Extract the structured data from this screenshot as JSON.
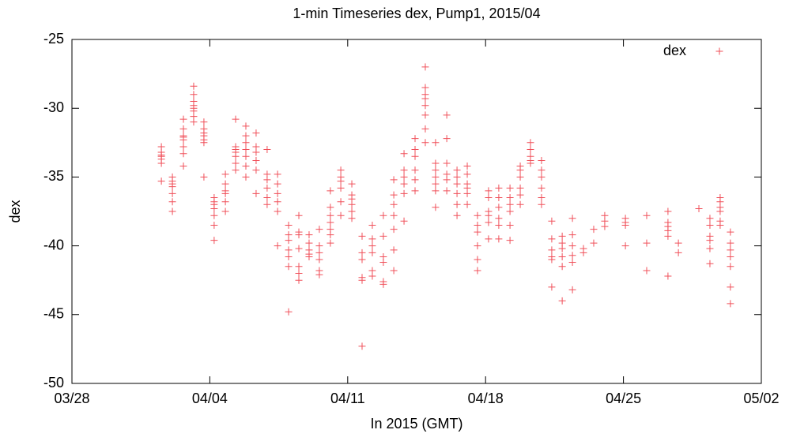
{
  "chart_data": {
    "type": "scatter",
    "title": "1-min Timeseries dex, Pump1, 2015/04",
    "x_label": "In 2015 (GMT)",
    "y_label": "dex",
    "legend_position": "top-right",
    "xlim": [
      0,
      35
    ],
    "ylim": [
      -50,
      -25
    ],
    "xticks": [
      {
        "value": 0,
        "label": "03/28"
      },
      {
        "value": 7,
        "label": "04/04"
      },
      {
        "value": 14,
        "label": "04/11"
      },
      {
        "value": 21,
        "label": "04/18"
      },
      {
        "value": 28,
        "label": "04/25"
      },
      {
        "value": 35,
        "label": "05/02"
      }
    ],
    "yticks": [
      -50,
      -45,
      -40,
      -35,
      -30,
      -25
    ],
    "series": [
      {
        "name": "dex",
        "color": "#f0505a",
        "x": [
          4.54,
          4.54,
          4.54,
          4.54,
          4.54,
          4.54,
          4.54,
          5.1,
          5.1,
          5.1,
          5.1,
          5.1,
          5.1,
          5.1,
          5.66,
          5.66,
          5.66,
          5.66,
          5.66,
          5.66,
          5.66,
          5.66,
          6.18,
          6.18,
          6.18,
          6.18,
          6.18,
          6.18,
          6.18,
          6.18,
          6.7,
          6.7,
          6.7,
          6.7,
          6.7,
          6.7,
          6.7,
          7.22,
          7.22,
          7.22,
          7.22,
          7.22,
          7.22,
          7.22,
          7.79,
          7.79,
          7.79,
          7.79,
          7.79,
          7.79,
          8.31,
          8.31,
          8.31,
          8.31,
          8.31,
          8.31,
          8.31,
          8.83,
          8.83,
          8.83,
          8.83,
          8.83,
          8.83,
          8.83,
          9.35,
          9.35,
          9.35,
          9.35,
          9.35,
          9.35,
          9.91,
          9.91,
          9.91,
          9.91,
          9.91,
          9.91,
          10.44,
          10.44,
          10.44,
          10.44,
          10.44,
          10.44,
          11.0,
          11.0,
          11.0,
          11.0,
          11.0,
          11.0,
          11.0,
          11.52,
          11.52,
          11.52,
          11.52,
          11.52,
          11.52,
          11.52,
          12.04,
          12.04,
          12.04,
          12.04,
          12.04,
          12.56,
          12.56,
          12.56,
          12.56,
          12.56,
          12.56,
          13.12,
          13.12,
          13.12,
          13.12,
          13.12,
          13.12,
          13.12,
          13.65,
          13.65,
          13.65,
          13.65,
          13.65,
          13.65,
          14.21,
          14.21,
          14.21,
          14.21,
          14.21,
          14.21,
          14.73,
          14.73,
          14.73,
          14.73,
          14.73,
          14.73,
          15.25,
          15.25,
          15.25,
          15.25,
          15.25,
          15.25,
          15.81,
          15.81,
          15.81,
          15.81,
          15.81,
          15.81,
          16.34,
          16.34,
          16.34,
          16.34,
          16.34,
          16.34,
          16.34,
          16.86,
          16.86,
          16.86,
          16.86,
          16.86,
          16.86,
          17.42,
          17.42,
          17.42,
          17.42,
          17.42,
          17.42,
          17.94,
          17.94,
          17.94,
          17.94,
          17.94,
          17.94,
          17.94,
          17.94,
          18.46,
          18.46,
          18.46,
          18.46,
          18.46,
          18.46,
          18.46,
          19.03,
          19.03,
          19.03,
          19.03,
          19.03,
          19.03,
          19.55,
          19.55,
          19.55,
          19.55,
          19.55,
          19.55,
          20.07,
          20.07,
          20.07,
          20.07,
          20.07,
          20.07,
          20.59,
          20.59,
          20.59,
          20.59,
          20.59,
          20.59,
          21.15,
          21.15,
          21.15,
          21.15,
          21.15,
          21.15,
          21.67,
          21.67,
          21.67,
          21.67,
          21.67,
          21.67,
          22.24,
          22.24,
          22.24,
          22.24,
          22.24,
          22.24,
          22.76,
          22.76,
          22.76,
          22.76,
          22.76,
          22.76,
          23.28,
          23.28,
          23.28,
          23.28,
          23.28,
          23.84,
          23.84,
          23.84,
          23.84,
          23.84,
          23.84,
          24.36,
          24.36,
          24.36,
          24.36,
          24.36,
          24.36,
          24.89,
          24.89,
          24.89,
          24.89,
          24.89,
          24.89,
          25.41,
          25.41,
          25.41,
          25.41,
          25.41,
          25.41,
          25.97,
          25.97,
          26.49,
          26.49,
          27.05,
          27.05,
          27.05,
          28.1,
          28.1,
          28.1,
          28.1,
          29.18,
          29.18,
          29.18,
          30.26,
          30.26,
          30.26,
          30.26,
          30.26,
          30.26,
          30.79,
          30.79,
          31.83,
          32.39,
          32.39,
          32.39,
          32.39,
          32.39,
          32.39,
          32.91,
          32.91,
          32.91,
          32.91,
          32.91,
          32.91,
          33.43,
          33.43,
          33.43,
          33.43,
          33.43,
          33.43,
          33.43
        ],
        "values": [
          -32.8,
          -33.2,
          -33.5,
          -33.7,
          -34.0,
          -33.4,
          -35.3,
          -35.3,
          -35.5,
          -35.7,
          -36.2,
          -36.8,
          -37.5,
          -35.0,
          -30.8,
          -31.5,
          -32.0,
          -32.3,
          -32.8,
          -33.3,
          -34.2,
          -32.1,
          -28.4,
          -29.0,
          -29.5,
          -30.0,
          -30.2,
          -30.6,
          -31.0,
          -29.8,
          -31.0,
          -31.5,
          -32.0,
          -32.3,
          -32.5,
          -31.8,
          -35.0,
          -36.5,
          -37.0,
          -37.3,
          -37.8,
          -38.5,
          -39.6,
          -36.8,
          -34.8,
          -35.5,
          -36.2,
          -36.8,
          -37.5,
          -36.0,
          -30.8,
          -32.8,
          -33.2,
          -33.5,
          -34.0,
          -34.5,
          -33.0,
          -31.3,
          -32.0,
          -32.5,
          -33.0,
          -33.5,
          -34.2,
          -35.0,
          -31.8,
          -32.8,
          -33.2,
          -33.8,
          -34.5,
          -36.2,
          -33.0,
          -34.8,
          -35.2,
          -35.8,
          -36.5,
          -37.0,
          -34.8,
          -35.5,
          -36.2,
          -36.8,
          -37.5,
          -40.0,
          -38.5,
          -39.2,
          -39.6,
          -40.3,
          -40.8,
          -41.5,
          -44.8,
          -37.8,
          -39.0,
          -39.2,
          -40.2,
          -41.5,
          -42.0,
          -42.5,
          -39.2,
          -39.8,
          -40.3,
          -40.6,
          -40.8,
          -38.8,
          -40.0,
          -40.5,
          -41.0,
          -41.8,
          -42.1,
          -36.0,
          -37.2,
          -37.8,
          -38.3,
          -38.8,
          -39.2,
          -39.8,
          -34.5,
          -35.0,
          -35.3,
          -35.8,
          -36.8,
          -37.8,
          -35.5,
          -36.3,
          -36.6,
          -37.0,
          -37.5,
          -38.0,
          -39.3,
          -40.5,
          -41.0,
          -42.3,
          -42.5,
          -47.3,
          -38.5,
          -39.5,
          -40.0,
          -40.5,
          -41.8,
          -42.2,
          -37.8,
          -39.3,
          -40.8,
          -41.2,
          -42.8,
          -42.6,
          -35.2,
          -36.3,
          -37.0,
          -37.8,
          -38.8,
          -40.3,
          -41.8,
          -33.3,
          -34.5,
          -35.0,
          -35.5,
          -36.2,
          -38.2,
          -32.2,
          -33.0,
          -33.5,
          -34.5,
          -35.2,
          -36.0,
          -27.0,
          -28.5,
          -29.0,
          -29.8,
          -30.5,
          -31.5,
          -32.5,
          -29.3,
          -32.5,
          -34.0,
          -34.5,
          -35.0,
          -35.5,
          -36.0,
          -37.2,
          -30.5,
          -32.2,
          -34.0,
          -34.8,
          -35.2,
          -36.0,
          -34.5,
          -35.0,
          -35.5,
          -36.2,
          -37.0,
          -37.8,
          -34.2,
          -34.8,
          -35.5,
          -35.8,
          -36.2,
          -37.0,
          -37.8,
          -38.5,
          -39.0,
          -40.0,
          -41.0,
          -41.8,
          -36.0,
          -36.5,
          -37.5,
          -37.8,
          -38.3,
          -39.5,
          -35.8,
          -36.5,
          -37.2,
          -38.0,
          -38.5,
          -39.5,
          -35.8,
          -36.5,
          -37.0,
          -37.5,
          -38.5,
          -39.6,
          -34.2,
          -34.5,
          -35.0,
          -35.8,
          -36.3,
          -37.0,
          -32.5,
          -33.0,
          -33.5,
          -33.8,
          -34.0,
          -33.8,
          -34.5,
          -35.0,
          -35.8,
          -36.5,
          -37.0,
          -38.2,
          -39.5,
          -40.3,
          -40.8,
          -41.0,
          -43.0,
          -39.3,
          -39.8,
          -40.2,
          -40.8,
          -41.5,
          -44.0,
          -38.0,
          -39.2,
          -40.0,
          -40.7,
          -41.2,
          -43.2,
          -40.2,
          -40.5,
          -38.8,
          -39.8,
          -37.8,
          -38.2,
          -38.6,
          -38.0,
          -38.3,
          -38.5,
          -40.0,
          -37.8,
          -39.8,
          -41.8,
          -37.5,
          -38.3,
          -38.6,
          -38.9,
          -39.3,
          -42.2,
          -39.8,
          -40.5,
          -37.3,
          -38.0,
          -38.5,
          -39.3,
          -39.6,
          -40.2,
          -41.3,
          -36.5,
          -36.8,
          -37.2,
          -37.5,
          -38.2,
          -38.5,
          -39.0,
          -39.8,
          -40.3,
          -40.8,
          -41.5,
          -43.0,
          -44.2
        ]
      }
    ]
  }
}
